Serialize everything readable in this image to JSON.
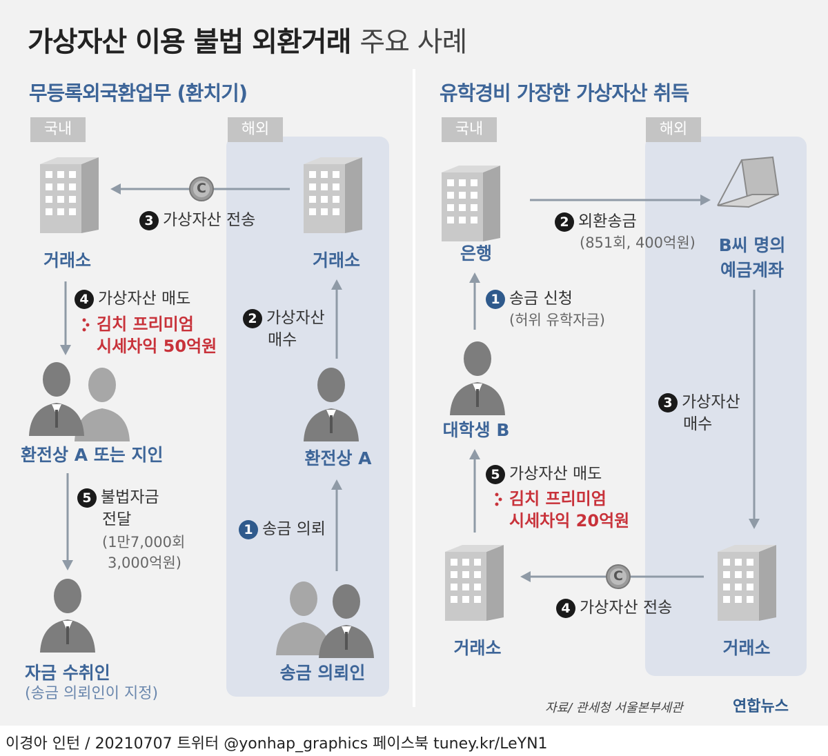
{
  "title": {
    "bold": "가상자산 이용 불법 외환거래",
    "light": "주요 사례"
  },
  "left": {
    "section_title": "무등록외국환업무 (환치기)",
    "tag_domestic": "국내",
    "tag_overseas": "해외",
    "domestic_exchange": "거래소",
    "overseas_exchange": "거래소",
    "dealer": "환전상 A",
    "dealer_or_acq": "환전상 A 또는 지인",
    "recipient": "자금 수취인",
    "recipient_note": "(송금 의뢰인이 지정)",
    "requesters": "송금 의뢰인",
    "steps": {
      "s1_num": "1",
      "s1": "송금 의뢰",
      "s2_num": "2",
      "s2a": "가상자산",
      "s2b": "매수",
      "s3_num": "3",
      "s3": "가상자산 전송",
      "s4_num": "4",
      "s4": "가상자산 매도",
      "s4_red1": "김치 프리미엄",
      "s4_red2": "시세차익 50억원",
      "s5_num": "5",
      "s5a": "불법자금",
      "s5b": "전달",
      "s5_sub1": "(1만7,000회",
      "s5_sub2": "3,000억원)"
    }
  },
  "right": {
    "section_title": "유학경비 가장한 가상자산 취득",
    "tag_domestic": "국내",
    "tag_overseas": "해외",
    "bank": "은행",
    "account1": "B씨 명의",
    "account2": "예금계좌",
    "student": "대학생 B",
    "domestic_exchange": "거래소",
    "overseas_exchange": "거래소",
    "steps": {
      "s1_num": "1",
      "s1": "송금 신청",
      "s1_sub": "(허위 유학자금)",
      "s2_num": "2",
      "s2": "외환송금",
      "s2_sub": "(851회, 400억원)",
      "s3_num": "3",
      "s3a": "가상자산",
      "s3b": "매수",
      "s4_num": "4",
      "s4": "가상자산 전송",
      "s5_num": "5",
      "s5": "가상자산 매도",
      "s5_red1": "김치 프리미엄",
      "s5_red2": "시세차익 20억원"
    }
  },
  "coin_symbol": "C",
  "source": "자료/ 관세청 서울본부세관",
  "logo": "연합뉴스",
  "credit": "이경아 인턴 / 20210707   트위터 @yonhap_graphics   페이스북 tuney.kr/LeYN1",
  "colors": {
    "accent": "#3d6598",
    "red": "#c8323a",
    "panel": "#dde2ec"
  }
}
